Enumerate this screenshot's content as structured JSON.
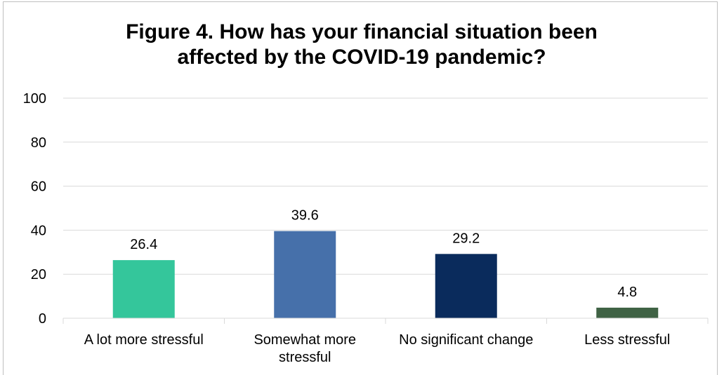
{
  "chart_data": {
    "type": "bar",
    "title": "Figure 4. How has your financial situation been affected by the COVID-19 pandemic?",
    "categories": [
      "A lot more stressful",
      "Somewhat more stressful",
      "No significant change",
      "Less stressful"
    ],
    "category_lines": [
      [
        "A lot more stressful"
      ],
      [
        "Somewhat more",
        "stressful"
      ],
      [
        "No significant change"
      ],
      [
        "Less stressful"
      ]
    ],
    "values": [
      26.4,
      39.6,
      29.2,
      4.8
    ],
    "data_labels": [
      "26.4",
      "39.6",
      "29.2",
      "4.8"
    ],
    "colors": [
      "#34c69b",
      "#4670aa",
      "#0a2b5c",
      "#3f6244"
    ],
    "ylim": [
      0,
      100
    ],
    "yticks": [
      0,
      20,
      40,
      60,
      80,
      100
    ],
    "xlabel": "",
    "ylabel": "",
    "grid": true,
    "legend": "none"
  }
}
